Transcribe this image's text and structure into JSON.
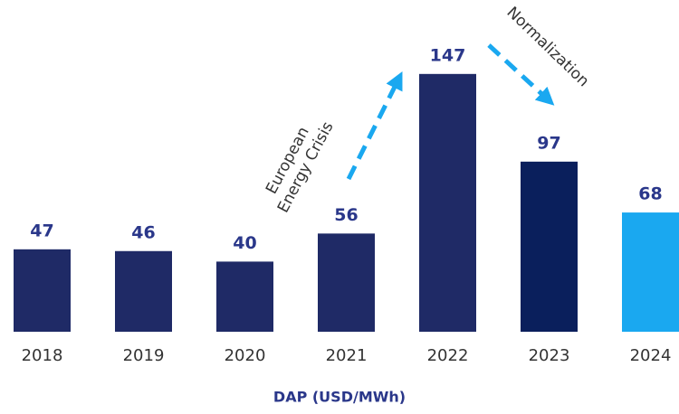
{
  "chart_data": {
    "type": "bar",
    "categories": [
      "2018",
      "2019",
      "2020",
      "2021",
      "2022",
      "2023",
      "2024"
    ],
    "values": [
      47,
      46,
      40,
      56,
      147,
      97,
      68
    ],
    "colors": [
      "#1f2a66",
      "#1f2a66",
      "#1f2a66",
      "#1f2a66",
      "#1f2a66",
      "#0a1f5c",
      "#1aa8f0"
    ],
    "x_label": "DAP (USD/MWh)",
    "annotations": [
      [
        "European",
        "Energy Crisis"
      ],
      [
        "Normalization"
      ]
    ]
  }
}
